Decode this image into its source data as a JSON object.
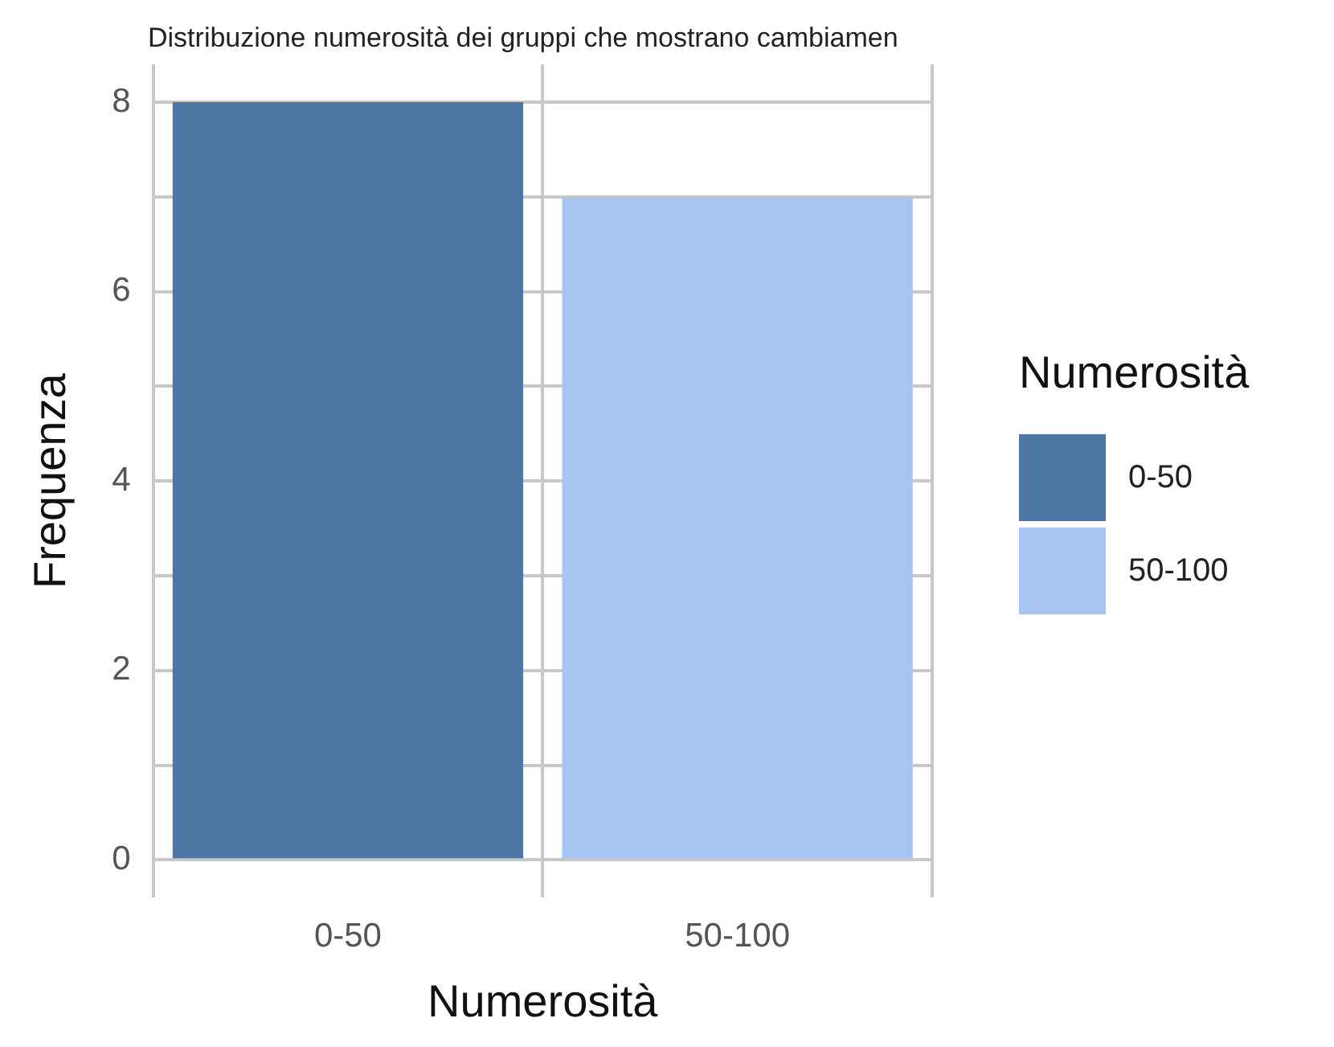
{
  "chart_data": {
    "type": "bar",
    "title": "Distribuzione numerosità dei gruppi che mostrano cambiamen",
    "xlabel": "Numerosità",
    "ylabel": "Frequenza",
    "legend_title": "Numerosità",
    "categories": [
      "0-50",
      "50-100"
    ],
    "series": [
      {
        "name": "0-50",
        "color": "#4e76a4",
        "values": [
          8,
          null
        ]
      },
      {
        "name": "50-100",
        "color": "#a7c4f2",
        "values": [
          null,
          7
        ]
      }
    ],
    "ylim": [
      -0.4,
      8.4
    ],
    "yticks": [
      0,
      {
        "value": 1,
        "label": null
      },
      2,
      {
        "value": 3,
        "label": null
      },
      4,
      {
        "value": 5,
        "label": null
      },
      6,
      {
        "value": 7,
        "label": null
      },
      8
    ],
    "grid": true,
    "legend": "right"
  }
}
